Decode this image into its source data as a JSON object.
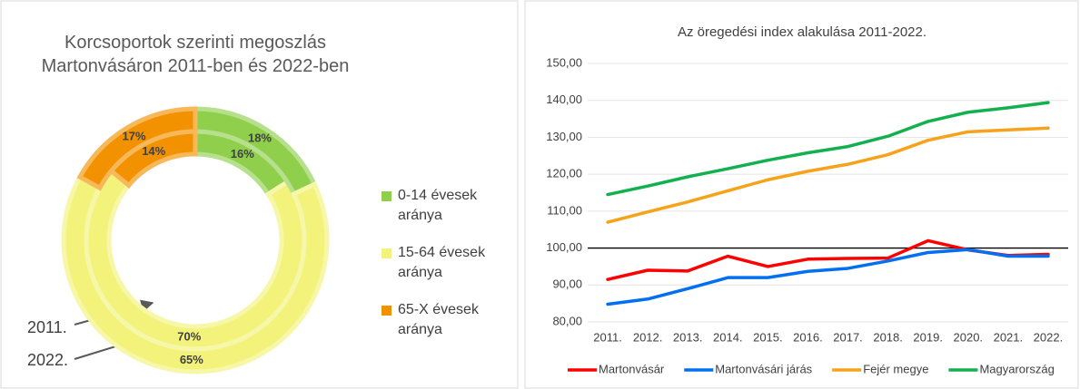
{
  "chart_data": [
    {
      "type": "donut",
      "title": "Korcsoportok szerinti megoszlás Martonvásáron 2011-ben és 2022-ben",
      "categories": [
        "0-14 évesek aránya",
        "15-64 évesek aránya",
        "65-X évesek aránya"
      ],
      "colors": [
        "#8fcf4c",
        "#f3f37c",
        "#f39200"
      ],
      "series": [
        {
          "name": "2011.",
          "values": [
            16,
            70,
            14
          ],
          "value_labels": [
            "16%",
            "70%",
            "14%"
          ]
        },
        {
          "name": "2022.",
          "values": [
            18,
            65,
            17
          ],
          "value_labels": [
            "18%",
            "65%",
            "17%"
          ]
        }
      ]
    },
    {
      "type": "line",
      "title": "Az öregedési index alakulása 2011-2022.",
      "categories": [
        "2011.",
        "2012.",
        "2013.",
        "2014.",
        "2015.",
        "2016.",
        "2017.",
        "2018.",
        "2019.",
        "2020.",
        "2021.",
        "2022."
      ],
      "ylim": [
        80,
        150
      ],
      "yticks": [
        {
          "value": 80,
          "label": "80,00"
        },
        {
          "value": 90,
          "label": "90,00"
        },
        {
          "value": 100,
          "label": "100,00"
        },
        {
          "value": 110,
          "label": "110,00"
        },
        {
          "value": 120,
          "label": "120,00"
        },
        {
          "value": 130,
          "label": "130,00"
        },
        {
          "value": 140,
          "label": "140,00"
        },
        {
          "value": 150,
          "label": "150,00"
        }
      ],
      "grid": true,
      "reference_line": 100,
      "legend": "bottom",
      "series": [
        {
          "name": "Martonvásár",
          "color": "#ff0000",
          "values": [
            91.5,
            94,
            93.8,
            97.8,
            95,
            97,
            97.2,
            97.3,
            102,
            99.5,
            98,
            98.3
          ]
        },
        {
          "name": "Martonvásári járás",
          "color": "#0070f0",
          "values": [
            84.8,
            86.2,
            89,
            92,
            92,
            93.7,
            94.5,
            96.5,
            98.8,
            99.6,
            97.8,
            97.8
          ]
        },
        {
          "name": "Fejér megye",
          "color": "#f7a21b",
          "values": [
            107,
            109.8,
            112.5,
            115.5,
            118.5,
            120.8,
            122.7,
            125.3,
            129.2,
            131.5,
            132,
            132.5
          ]
        },
        {
          "name": "Magyarország",
          "color": "#13b04f",
          "values": [
            114.5,
            116.8,
            119.3,
            121.5,
            123.8,
            125.8,
            127.5,
            130.3,
            134.3,
            136.8,
            138,
            139.4
          ]
        }
      ]
    }
  ]
}
